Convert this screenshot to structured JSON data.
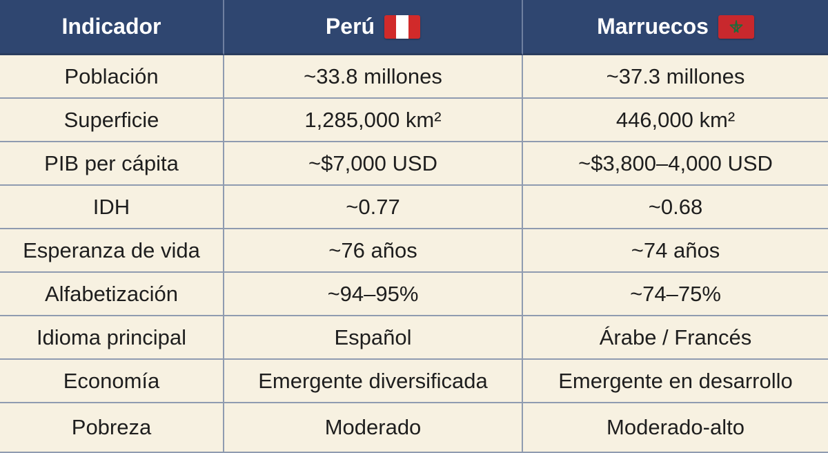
{
  "header": {
    "indicator": "Indicador",
    "peru": "Perú",
    "morocco": "Marruecos"
  },
  "flags": {
    "peru": {
      "icon": "peru-flag-icon",
      "colors": [
        "#d12a2a",
        "#ffffff"
      ]
    },
    "morocco": {
      "icon": "morocco-flag-icon",
      "colors": [
        "#c8282d",
        "#1f6b3a"
      ]
    }
  },
  "rows": [
    {
      "indicator": "Población",
      "peru": "~33.8 millones",
      "morocco": "~37.3 millones"
    },
    {
      "indicator": "Superficie",
      "peru": "1,285,000 km²",
      "morocco": "446,000 km²"
    },
    {
      "indicator": "PIB per cápita",
      "peru": "~$7,000 USD",
      "morocco": "~$3,800–4,000 USD"
    },
    {
      "indicator": "IDH",
      "peru": "~0.77",
      "morocco": "~0.68"
    },
    {
      "indicator": "Esperanza de vida",
      "peru": "~76 años",
      "morocco": "~74 años"
    },
    {
      "indicator": "Alfabetización",
      "peru": "~94–95%",
      "morocco": "~74–75%"
    },
    {
      "indicator": "Idioma principal",
      "peru": "Español",
      "morocco": "Árabe / Francés"
    },
    {
      "indicator": "Economía",
      "peru": "Emergente diversificada",
      "morocco": "Emergente en desarrollo"
    },
    {
      "indicator": "Pobreza",
      "peru": "Moderado",
      "morocco": "Moderado-alto"
    }
  ],
  "colors": {
    "header_bg": "#2f4670",
    "row_bg": "#f7f1e1",
    "grid_line": "#8f9bb0"
  }
}
